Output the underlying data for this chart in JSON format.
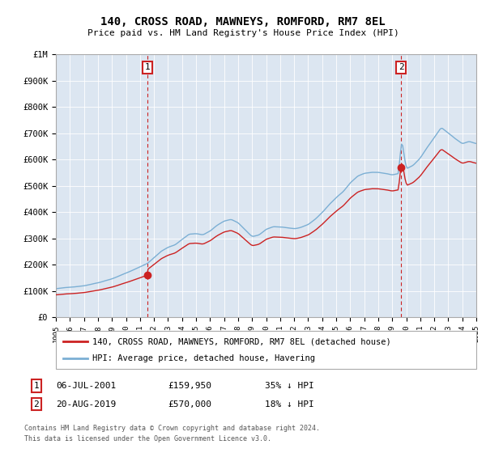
{
  "title": "140, CROSS ROAD, MAWNEYS, ROMFORD, RM7 8EL",
  "subtitle": "Price paid vs. HM Land Registry's House Price Index (HPI)",
  "ylim": [
    0,
    1000000
  ],
  "yticks": [
    0,
    100000,
    200000,
    300000,
    400000,
    500000,
    600000,
    700000,
    800000,
    900000,
    1000000
  ],
  "ytick_labels": [
    "£0",
    "£100K",
    "£200K",
    "£300K",
    "£400K",
    "£500K",
    "£600K",
    "£700K",
    "£800K",
    "£900K",
    "£1M"
  ],
  "plot_bg_color": "#dce6f1",
  "hpi_color": "#7bafd4",
  "sale_color": "#cc2222",
  "marker1_x": 2001.52,
  "marker1_y": 159950,
  "marker2_x": 2019.63,
  "marker2_y": 570000,
  "legend_line1": "140, CROSS ROAD, MAWNEYS, ROMFORD, RM7 8EL (detached house)",
  "legend_line2": "HPI: Average price, detached house, Havering",
  "marker1_date": "06-JUL-2001",
  "marker1_price": "£159,950",
  "marker1_hpi": "35% ↓ HPI",
  "marker2_date": "20-AUG-2019",
  "marker2_price": "£570,000",
  "marker2_hpi": "18% ↓ HPI",
  "footnote1": "Contains HM Land Registry data © Crown copyright and database right 2024.",
  "footnote2": "This data is licensed under the Open Government Licence v3.0.",
  "xmin": 1995,
  "xmax": 2025
}
